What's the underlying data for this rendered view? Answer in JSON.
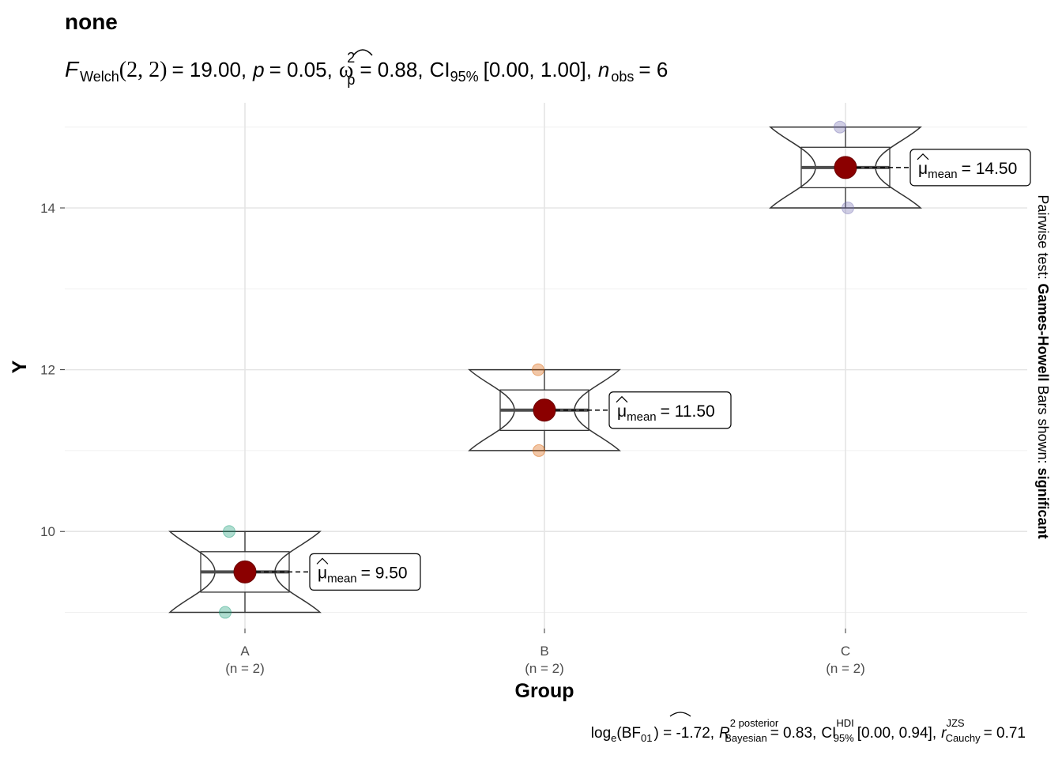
{
  "chart_data": {
    "type": "violin-box-scatter",
    "title": "none",
    "subtitle": {
      "stat_symbol": "F",
      "stat_sub": "Welch",
      "df": "(2, 2)",
      "stat_value": "= 19.00,",
      "p_symbol": "p",
      "p_value": "= 0.05,",
      "effect_symbol": "ω",
      "effect_sup": "2",
      "effect_sub": "p",
      "effect_value": "= 0.88,",
      "ci_symbol": "CI",
      "ci_sub": "95%",
      "ci_value": "[0.00, 1.00],",
      "n_symbol": "n",
      "n_sub": "obs",
      "n_value": "= 6"
    },
    "caption": {
      "log_text": "log",
      "log_sub": "e",
      "bf_text": "(BF",
      "bf_sub": "01",
      "bf_value": ") = -1.72,",
      "r_symbol": "R",
      "r_sup": "2 posterior",
      "r_sub": "Bayesian",
      "r_value": "= 0.83,",
      "ci_symbol": "CI",
      "ci_sup": "HDI",
      "ci_sub": "95%",
      "ci_value": "[0.00, 0.94],",
      "rc_symbol": "r",
      "rc_sup": "JZS",
      "rc_sub": "Cauchy",
      "rc_value": "= 0.71"
    },
    "xlabel": "Group",
    "ylabel": "Y",
    "side_label": {
      "prefix": "Pairwise test: ",
      "test": "Games-Howell",
      "middle": " Bars shown: ",
      "shown": "significant"
    },
    "ylim": [
      8.8,
      15.3
    ],
    "yticks": [
      10,
      12,
      14
    ],
    "grid": true,
    "categories": [
      "A",
      "B",
      "C"
    ],
    "counts": [
      "(n = 2)",
      "(n = 2)",
      "(n = 2)"
    ],
    "points": [
      {
        "group": "A",
        "values": [
          10,
          9
        ],
        "color": "#1b9e77"
      },
      {
        "group": "B",
        "values": [
          12,
          11
        ],
        "color": "#d95f02"
      },
      {
        "group": "C",
        "values": [
          15,
          14
        ],
        "color": "#7570b3"
      }
    ],
    "means": [
      9.5,
      11.5,
      14.5
    ],
    "mean_label_prefix": "μ",
    "mean_label_sub": "mean",
    "mean_labels": [
      "= 9.50",
      "= 11.50",
      "= 14.50"
    ],
    "mean_color": "#8b0000"
  }
}
